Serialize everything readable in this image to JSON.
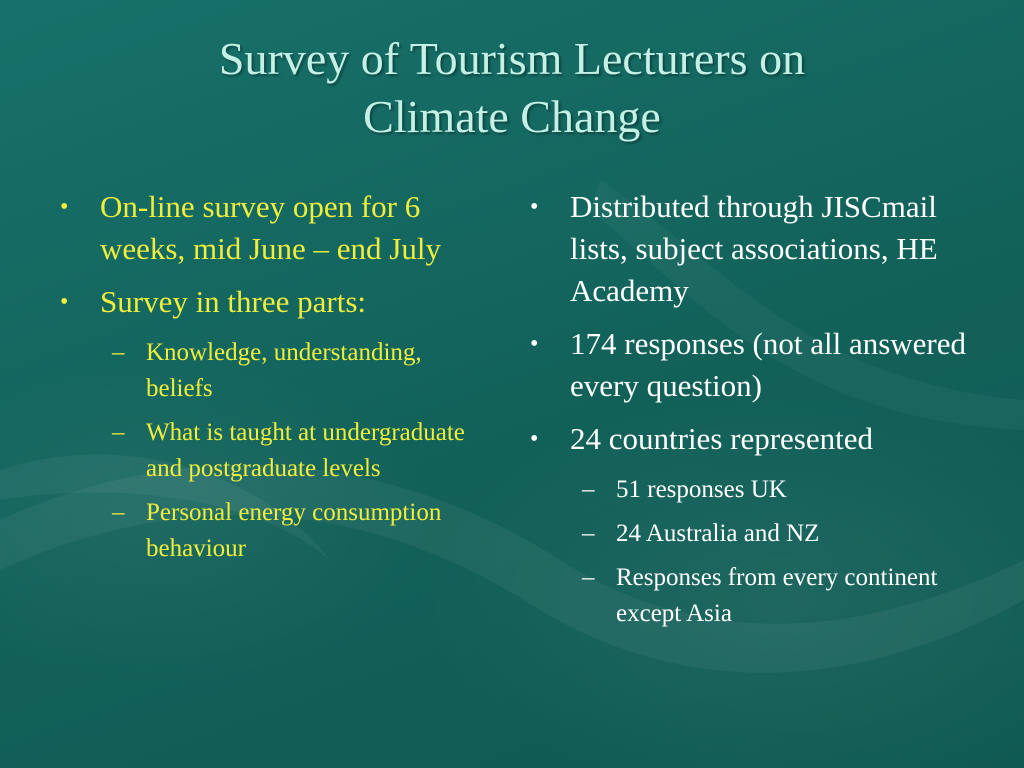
{
  "slide": {
    "title_line1": "Survey of Tourism Lecturers on",
    "title_line2": "Climate Change"
  },
  "left_column": {
    "color": "#f0ee3c",
    "bullet_1": "On-line survey open for 6 weeks, mid June – end July",
    "bullet_2": "Survey in three parts:",
    "sub_items": [
      "Knowledge, understanding, beliefs",
      "What is taught at undergraduate and postgraduate levels",
      "Personal energy consumption behaviour"
    ]
  },
  "right_column": {
    "color": "#ffffff",
    "bullet_1": "Distributed through JISCmail lists, subject associations, HE Academy",
    "bullet_2": "174 responses (not all answered every question)",
    "bullet_3": "24 countries represented",
    "sub_items": [
      "51 responses UK",
      "24 Australia and NZ",
      "Responses from every continent except Asia"
    ]
  },
  "markers": {
    "bullet": "•",
    "dash": "–"
  },
  "theme": {
    "background": "#15685f",
    "title_color": "#c4f0e6"
  }
}
